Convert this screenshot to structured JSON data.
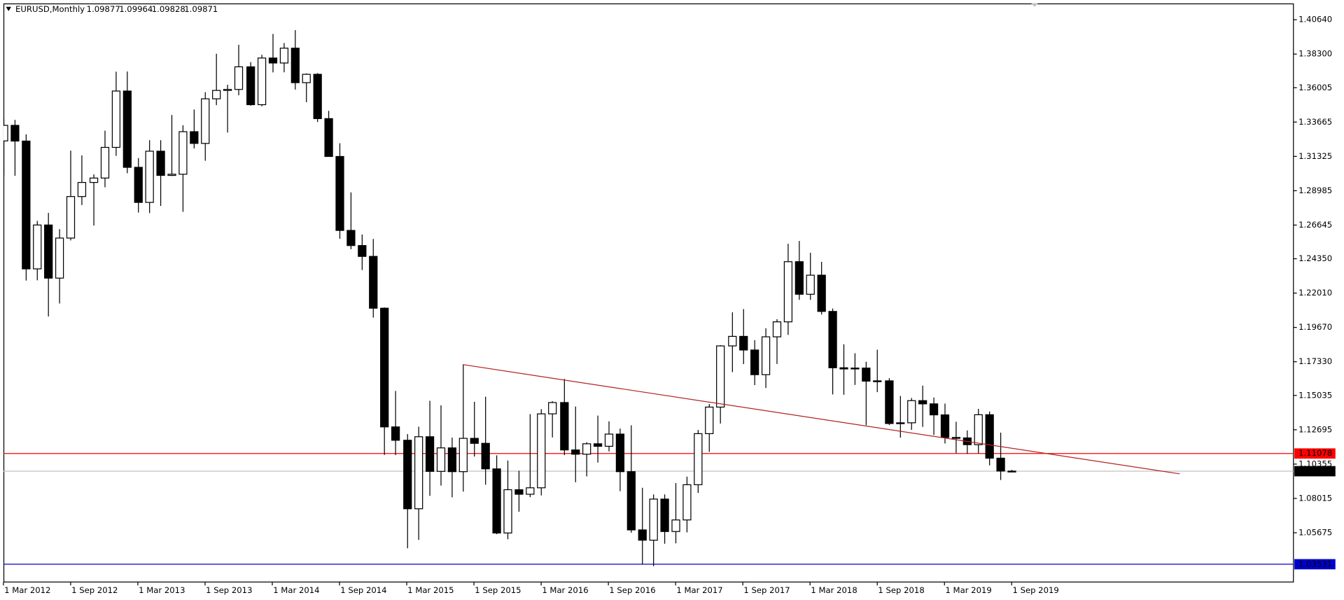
{
  "chart_data": {
    "type": "candlestick",
    "title": "EURUSD,Monthly",
    "categories": [
      "1 Mar 2012",
      null,
      null,
      null,
      null,
      null,
      "1 Sep 2012",
      null,
      null,
      null,
      null,
      null,
      "1 Mar 2013",
      null,
      null,
      null,
      null,
      null,
      "1 Sep 2013",
      null,
      null,
      null,
      null,
      null,
      "1 Mar 2014",
      null,
      null,
      null,
      null,
      null,
      "1 Sep 2014",
      null,
      null,
      null,
      null,
      null,
      "1 Mar 2015",
      null,
      null,
      null,
      null,
      null,
      "1 Sep 2015",
      null,
      null,
      null,
      null,
      null,
      "1 Mar 2016",
      null,
      null,
      null,
      null,
      null,
      "1 Sep 2016",
      null,
      null,
      null,
      null,
      null,
      "1 Mar 2017",
      null,
      null,
      null,
      null,
      null,
      "1 Sep 2017",
      null,
      null,
      null,
      null,
      null,
      "1 Mar 2018",
      null,
      null,
      null,
      null,
      null,
      "1 Sep 2018",
      null,
      null,
      null,
      null,
      null,
      "1 Mar 2019",
      null,
      null,
      null,
      null,
      null,
      "1 Sep 2019"
    ],
    "candles": {
      "open": [
        1.3238,
        1.3344,
        1.3237,
        1.2366,
        1.2665,
        1.2303,
        1.2576,
        1.2859,
        1.2955,
        1.2985,
        1.3194,
        1.3578,
        1.3058,
        1.2819,
        1.3168,
        1.3003,
        1.3011,
        1.3301,
        1.3221,
        1.3525,
        1.3582,
        1.3589,
        1.3743,
        1.3485,
        1.3803,
        1.3769,
        1.387,
        1.3635,
        1.3692,
        1.339,
        1.3132,
        1.2628,
        1.2525,
        1.2451,
        1.2098,
        1.1289,
        1.1198,
        1.0731,
        1.1222,
        1.0986,
        1.1146,
        1.0984,
        1.1211,
        1.1177,
        1.1003,
        1.0566,
        1.0861,
        1.083,
        1.0874,
        1.1378,
        1.1455,
        1.1132,
        1.1103,
        1.1174,
        1.1157,
        1.124,
        1.0984,
        1.0587,
        1.0517,
        1.0797,
        1.0576,
        1.0655,
        1.0895,
        1.1243,
        1.1424,
        1.1841,
        1.1906,
        1.1813,
        1.1645,
        1.1903,
        1.2005,
        1.2415,
        1.2193,
        1.2323,
        1.2076,
        1.1692,
        1.1684,
        1.169,
        1.1601,
        1.1603,
        1.1312,
        1.1317,
        1.1468,
        1.1446,
        1.1371,
        1.1217,
        1.1214,
        1.1168,
        1.1372,
        1.1076,
        1.09877
      ],
      "high": [
        1.3386,
        1.3381,
        1.3283,
        1.2693,
        1.2747,
        1.2637,
        1.3172,
        1.314,
        1.301,
        1.3308,
        1.371,
        1.3711,
        1.3121,
        1.3243,
        1.3243,
        1.3415,
        1.3345,
        1.3452,
        1.357,
        1.3832,
        1.3621,
        1.3893,
        1.3775,
        1.3825,
        1.3967,
        1.3905,
        1.3993,
        1.3698,
        1.37,
        1.3443,
        1.3222,
        1.2887,
        1.26,
        1.257,
        1.2103,
        1.1534,
        1.124,
        1.129,
        1.1467,
        1.1436,
        1.1216,
        1.1714,
        1.146,
        1.1495,
        1.1095,
        1.106,
        1.099,
        1.1376,
        1.141,
        1.1464,
        1.1616,
        1.1428,
        1.1185,
        1.1366,
        1.1327,
        1.1278,
        1.13,
        1.0874,
        1.0829,
        1.0829,
        1.0906,
        1.095,
        1.1268,
        1.1445,
        1.1846,
        1.207,
        1.2092,
        1.188,
        1.1961,
        1.2023,
        1.2537,
        1.2556,
        1.2476,
        1.2414,
        1.2096,
        1.1852,
        1.1791,
        1.1733,
        1.1815,
        1.1621,
        1.15,
        1.1486,
        1.157,
        1.1489,
        1.1448,
        1.1324,
        1.1265,
        1.1412,
        1.1394,
        1.125,
        1.09964
      ],
      "low": [
        1.3004,
        1.3,
        1.2286,
        1.2288,
        1.2042,
        1.213,
        1.256,
        1.2801,
        1.2661,
        1.2922,
        1.3136,
        1.3018,
        1.275,
        1.2746,
        1.2795,
        1.2999,
        1.2755,
        1.3187,
        1.3103,
        1.3482,
        1.3295,
        1.3549,
        1.3478,
        1.3474,
        1.3705,
        1.3706,
        1.3588,
        1.3502,
        1.3367,
        1.313,
        1.2571,
        1.25,
        1.2358,
        1.2034,
        1.1098,
        1.1097,
        1.0462,
        1.0519,
        1.0819,
        1.0889,
        1.0809,
        1.0848,
        1.1087,
        1.0895,
        1.0558,
        1.0523,
        1.0711,
        1.081,
        1.0822,
        1.1217,
        1.1097,
        1.0912,
        1.0952,
        1.1046,
        1.1122,
        1.0851,
        1.0568,
        1.0352,
        1.034,
        1.0493,
        1.0495,
        1.057,
        1.0839,
        1.1119,
        1.1312,
        1.1662,
        1.1717,
        1.1574,
        1.1554,
        1.1718,
        1.1916,
        1.2155,
        1.2155,
        1.2055,
        1.151,
        1.1508,
        1.1575,
        1.1301,
        1.1526,
        1.1302,
        1.1216,
        1.1269,
        1.1289,
        1.1234,
        1.1176,
        1.111,
        1.1105,
        1.1107,
        1.1027,
        1.0927,
        1.09828
      ],
      "close": [
        1.3344,
        1.3237,
        1.2366,
        1.2665,
        1.2303,
        1.2576,
        1.2859,
        1.2955,
        1.2985,
        1.3194,
        1.3578,
        1.3058,
        1.2819,
        1.3168,
        1.3003,
        1.3011,
        1.3301,
        1.3221,
        1.3525,
        1.3582,
        1.3589,
        1.3743,
        1.3485,
        1.3803,
        1.3769,
        1.387,
        1.3635,
        1.3692,
        1.339,
        1.3132,
        1.2628,
        1.2525,
        1.2451,
        1.2098,
        1.1289,
        1.1198,
        1.0731,
        1.1222,
        1.0986,
        1.1146,
        1.0984,
        1.1211,
        1.1177,
        1.1003,
        1.0566,
        1.0861,
        1.083,
        1.0874,
        1.1378,
        1.1455,
        1.1132,
        1.1103,
        1.1174,
        1.1157,
        1.124,
        1.0984,
        1.0587,
        1.0517,
        1.0797,
        1.0576,
        1.0655,
        1.0895,
        1.1243,
        1.1424,
        1.1841,
        1.1906,
        1.1813,
        1.1645,
        1.1903,
        1.2005,
        1.2415,
        1.2193,
        1.2323,
        1.2076,
        1.1692,
        1.1684,
        1.169,
        1.1601,
        1.1603,
        1.1312,
        1.1317,
        1.1468,
        1.1446,
        1.1371,
        1.1217,
        1.1214,
        1.1168,
        1.1372,
        1.1076,
        1.0988,
        1.09871
      ]
    },
    "up_color": "#ffffff",
    "down_color": "#000000",
    "ylim": [
      1.0232,
      1.4175
    ],
    "yticks": [
      {
        "value": 1.4064,
        "label": "1.40640"
      },
      {
        "value": 1.383,
        "label": "1.38300"
      },
      1.36005,
      1.33665,
      1.31325,
      1.28985,
      1.26645,
      {
        "value": 1.2435,
        "label": "1.24350"
      },
      {
        "value": 1.2201,
        "label": "1.22010"
      },
      {
        "value": 1.1967,
        "label": "1.19670"
      },
      {
        "value": 1.1733,
        "label": "1.17330"
      },
      1.15035,
      1.12695,
      1.10355,
      1.08015,
      1.05675
    ],
    "levels": [
      {
        "value": 1.11078,
        "color": "#ff0000"
      },
      {
        "value": 1.03531,
        "color": "#0000cc"
      }
    ],
    "trendline": {
      "color": "#b22222",
      "x": [
        41,
        105
      ],
      "y": [
        1.1714,
        1.0969
      ]
    }
  }
}
